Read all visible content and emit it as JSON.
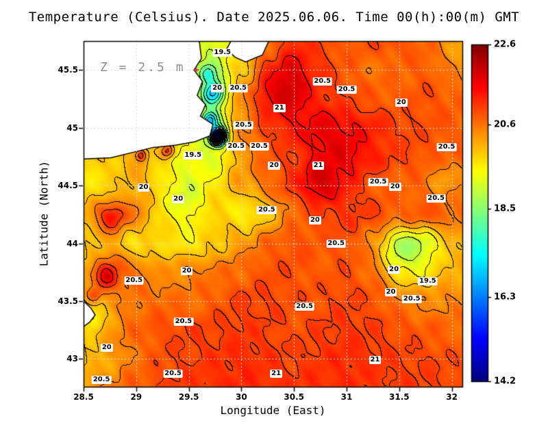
{
  "chart_data": {
    "type": "heatmap",
    "title": "Temperature (Celsius). Date 2025.06.06. Time 00(h):00(m) GMT",
    "xlabel": "Longitude (East)",
    "ylabel": "Latitude (North)",
    "depth_label": "Z = 2.5 m",
    "x_range": [
      28.5,
      32.1
    ],
    "y_range": [
      42.76,
      45.75
    ],
    "x_ticks": [
      {
        "value": 28.5,
        "label": "28.5"
      },
      {
        "value": 29,
        "label": "29"
      },
      {
        "value": 29.5,
        "label": "29.5"
      },
      {
        "value": 30,
        "label": "30"
      },
      {
        "value": 30.5,
        "label": "30.5"
      },
      {
        "value": 31,
        "label": "31"
      },
      {
        "value": 31.5,
        "label": "31.5"
      },
      {
        "value": 32,
        "label": "32"
      }
    ],
    "y_ticks": [
      {
        "value": 43,
        "label": "43"
      },
      {
        "value": 43.5,
        "label": "43.5"
      },
      {
        "value": 44,
        "label": "44"
      },
      {
        "value": 44.5,
        "label": "44.5"
      },
      {
        "value": 45,
        "label": "45"
      },
      {
        "value": 45.5,
        "label": "45.5"
      }
    ],
    "grid": "dotted",
    "gridline_color": "#d9d9d9",
    "contour_color": "#000000",
    "coastline_color": "#000000",
    "land_color": "#ffffff",
    "contour_interval": 0.5,
    "contour_levels": [
      19.5,
      20,
      20.5,
      21
    ],
    "colorbar": {
      "colormap": "jet",
      "min": 14.2,
      "max": 22.6,
      "ticks": [
        {
          "value": 22.6,
          "label": "22.6"
        },
        {
          "value": 20.6,
          "label": "20.6"
        },
        {
          "value": 18.5,
          "label": "18.5"
        },
        {
          "value": 16.3,
          "label": "16.3"
        },
        {
          "value": 14.2,
          "label": "14.2"
        }
      ]
    },
    "temperature_grid": {
      "lon_start": 28.5,
      "lon_step": 0.25,
      "lat_start": 45.75,
      "lat_step": -0.25,
      "values": [
        [
          19.5,
          19.5,
          19.5,
          19.4,
          19.3,
          19.2,
          19.6,
          20.6,
          21.2,
          21.0,
          20.8,
          20.9,
          20.9,
          20.7,
          20.3,
          20.0
        ],
        [
          19.5,
          19.5,
          19.5,
          19.4,
          19.2,
          18.9,
          19.9,
          21.0,
          21.5,
          21.1,
          20.8,
          20.6,
          20.7,
          20.8,
          20.5,
          20.3
        ],
        [
          19.6,
          19.6,
          19.6,
          19.5,
          19.3,
          18.8,
          20.4,
          21.2,
          21.4,
          21.1,
          20.9,
          20.8,
          20.8,
          20.9,
          20.8,
          20.6
        ],
        [
          19.7,
          19.7,
          19.7,
          19.6,
          19.4,
          18.8,
          20.4,
          21.0,
          21.3,
          21.4,
          21.2,
          21.2,
          21.0,
          20.9,
          20.8,
          20.6
        ],
        [
          19.8,
          19.9,
          20.1,
          19.8,
          19.5,
          19.2,
          20.3,
          20.8,
          21.0,
          21.2,
          21.4,
          21.2,
          21.0,
          20.9,
          20.8,
          20.7
        ],
        [
          19.6,
          19.8,
          20.2,
          19.9,
          19.6,
          19.8,
          20.4,
          20.8,
          21.1,
          21.4,
          21.2,
          20.8,
          20.7,
          20.8,
          20.6,
          20.5
        ],
        [
          20.2,
          20.9,
          20.5,
          19.8,
          19.6,
          20.0,
          19.9,
          20.2,
          20.7,
          21.0,
          21.1,
          21.0,
          20.8,
          20.9,
          20.7,
          20.6
        ],
        [
          19.8,
          20.2,
          19.7,
          19.8,
          19.6,
          19.9,
          20.4,
          20.8,
          20.9,
          20.8,
          20.9,
          20.5,
          19.6,
          19.4,
          20.0,
          20.3
        ],
        [
          20.3,
          21.0,
          20.6,
          20.3,
          20.5,
          20.6,
          20.7,
          20.9,
          20.9,
          20.8,
          20.9,
          20.7,
          20.0,
          19.8,
          20.1,
          19.9
        ],
        [
          19.9,
          20.3,
          20.6,
          20.7,
          20.6,
          20.8,
          21.0,
          21.0,
          20.9,
          20.9,
          21.0,
          20.9,
          20.6,
          20.4,
          20.5,
          20.4
        ],
        [
          20.0,
          20.4,
          20.7,
          20.9,
          21.0,
          21.0,
          21.1,
          21.0,
          20.9,
          21.0,
          21.1,
          21.0,
          20.9,
          20.8,
          20.7,
          20.6
        ],
        [
          19.9,
          20.2,
          20.6,
          20.9,
          21.0,
          21.1,
          21.2,
          21.1,
          21.0,
          21.1,
          21.2,
          21.1,
          21.0,
          21.0,
          20.9,
          20.8
        ],
        [
          20.3,
          20.5,
          20.8,
          21.0,
          21.1,
          21.2,
          21.2,
          21.2,
          21.1,
          21.2,
          21.2,
          21.1,
          21.1,
          21.0,
          21.0,
          20.9
        ]
      ]
    },
    "spots": [
      {
        "lon": 29.78,
        "lat": 44.92,
        "amp": -6.5,
        "r": 0.065
      },
      {
        "lon": 29.7,
        "lat": 45.06,
        "amp": -2.2,
        "r": 0.07
      },
      {
        "lon": 29.73,
        "lat": 45.3,
        "amp": -2.0,
        "r": 0.09
      },
      {
        "lon": 29.68,
        "lat": 45.46,
        "amp": -1.4,
        "r": 0.08
      },
      {
        "lon": 30.4,
        "lat": 45.33,
        "amp": 0.6,
        "r": 0.22
      },
      {
        "lon": 30.9,
        "lat": 44.9,
        "amp": 0.4,
        "r": 0.3
      },
      {
        "lon": 30.75,
        "lat": 44.55,
        "amp": 0.5,
        "r": 0.18
      },
      {
        "lon": 28.72,
        "lat": 43.7,
        "amp": 0.9,
        "r": 0.09
      },
      {
        "lon": 28.78,
        "lat": 44.22,
        "amp": 0.6,
        "r": 0.1
      },
      {
        "lon": 31.55,
        "lat": 43.92,
        "amp": -0.9,
        "r": 0.22
      },
      {
        "lon": 32.28,
        "lat": 45.62,
        "amp": -0.8,
        "r": 0.13
      },
      {
        "lon": 29.45,
        "lat": 44.45,
        "amp": -0.5,
        "r": 0.25
      },
      {
        "lon": 30.1,
        "lat": 44.3,
        "amp": -0.4,
        "r": 0.28
      },
      {
        "lon": 31.9,
        "lat": 44.55,
        "amp": -0.4,
        "r": 0.18
      },
      {
        "lon": 28.62,
        "lat": 43.35,
        "amp": -0.7,
        "r": 0.12
      },
      {
        "lon": 29.3,
        "lat": 44.8,
        "amp": 1.4,
        "r": 0.06
      },
      {
        "lon": 29.05,
        "lat": 44.76,
        "amp": 1.2,
        "r": 0.05
      },
      {
        "lon": 28.6,
        "lat": 43.55,
        "amp": 1.0,
        "r": 0.07
      }
    ],
    "land_polygons": [
      [
        [
          28.5,
          45.75
        ],
        [
          29.6,
          45.75
        ],
        [
          29.62,
          45.6
        ],
        [
          29.55,
          45.5
        ],
        [
          29.63,
          45.4
        ],
        [
          29.58,
          45.28
        ],
        [
          29.66,
          45.2
        ],
        [
          29.61,
          45.1
        ],
        [
          29.73,
          45.03
        ],
        [
          29.7,
          44.93
        ],
        [
          29.56,
          44.88
        ],
        [
          29.38,
          44.85
        ],
        [
          29.16,
          44.83
        ],
        [
          28.98,
          44.79
        ],
        [
          28.76,
          44.74
        ],
        [
          28.5,
          44.73
        ]
      ],
      [
        [
          29.9,
          45.75
        ],
        [
          30.26,
          45.75
        ],
        [
          30.2,
          45.63
        ],
        [
          30.04,
          45.57
        ],
        [
          29.94,
          45.61
        ],
        [
          29.86,
          45.68
        ]
      ],
      [
        [
          28.5,
          43.5
        ],
        [
          28.57,
          43.44
        ],
        [
          28.61,
          43.38
        ],
        [
          28.56,
          43.32
        ],
        [
          28.5,
          43.28
        ]
      ]
    ],
    "marker": {
      "lon": 29.57,
      "lat": 45.5,
      "symbol": "+",
      "color": "#c03a4e"
    },
    "contour_labels": [
      {
        "text": "19.5",
        "lon": 29.82,
        "lat": 45.65
      },
      {
        "text": "20",
        "lon": 29.77,
        "lat": 45.34
      },
      {
        "text": "20.5",
        "lon": 29.97,
        "lat": 45.34
      },
      {
        "text": "20.5",
        "lon": 30.77,
        "lat": 45.4
      },
      {
        "text": "20.5",
        "lon": 31.0,
        "lat": 45.33
      },
      {
        "text": "21",
        "lon": 30.36,
        "lat": 45.17
      },
      {
        "text": "20",
        "lon": 31.52,
        "lat": 45.22
      },
      {
        "text": "20.5",
        "lon": 30.02,
        "lat": 45.02
      },
      {
        "text": "20.5",
        "lon": 31.95,
        "lat": 44.83
      },
      {
        "text": "19.5",
        "lon": 29.54,
        "lat": 44.76
      },
      {
        "text": "20.5",
        "lon": 29.95,
        "lat": 44.84
      },
      {
        "text": "20.5",
        "lon": 30.17,
        "lat": 44.84
      },
      {
        "text": "20",
        "lon": 30.31,
        "lat": 44.67
      },
      {
        "text": "21",
        "lon": 30.73,
        "lat": 44.67
      },
      {
        "text": "20.5",
        "lon": 31.3,
        "lat": 44.53
      },
      {
        "text": "20",
        "lon": 31.46,
        "lat": 44.49
      },
      {
        "text": "20",
        "lon": 29.07,
        "lat": 44.48
      },
      {
        "text": "20.5",
        "lon": 31.85,
        "lat": 44.39
      },
      {
        "text": "20",
        "lon": 29.4,
        "lat": 44.38
      },
      {
        "text": "20.5",
        "lon": 30.24,
        "lat": 44.29
      },
      {
        "text": "20",
        "lon": 30.7,
        "lat": 44.2
      },
      {
        "text": "20.5",
        "lon": 30.9,
        "lat": 44.0
      },
      {
        "text": "20",
        "lon": 29.48,
        "lat": 43.76
      },
      {
        "text": "20.5",
        "lon": 28.98,
        "lat": 43.68
      },
      {
        "text": "20",
        "lon": 31.45,
        "lat": 43.77
      },
      {
        "text": "19.5",
        "lon": 31.77,
        "lat": 43.67
      },
      {
        "text": "20",
        "lon": 31.42,
        "lat": 43.58
      },
      {
        "text": "20.5",
        "lon": 31.62,
        "lat": 43.52
      },
      {
        "text": "20.5",
        "lon": 30.6,
        "lat": 43.45
      },
      {
        "text": "20.5",
        "lon": 29.45,
        "lat": 43.32
      },
      {
        "text": "20",
        "lon": 28.72,
        "lat": 43.1
      },
      {
        "text": "21",
        "lon": 31.27,
        "lat": 42.99
      },
      {
        "text": "21",
        "lon": 30.33,
        "lat": 42.87
      },
      {
        "text": "20.5",
        "lon": 29.35,
        "lat": 42.87
      },
      {
        "text": "20.5",
        "lon": 28.67,
        "lat": 42.82
      }
    ]
  }
}
